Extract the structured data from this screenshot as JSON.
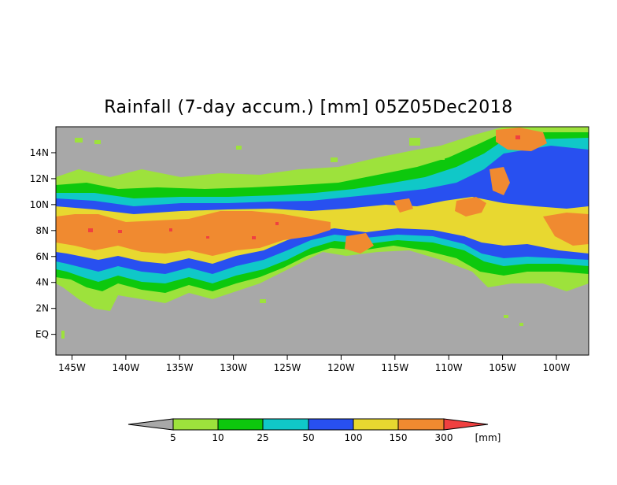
{
  "title": "Rainfall (7-day accum.) [mm] 05Z05Dec2018",
  "map": {
    "lon_range": [
      -146.5,
      -97
    ],
    "lat_range": [
      -1.6,
      16
    ],
    "x_ticks": [
      {
        "lon": -145,
        "label": "145W"
      },
      {
        "lon": -140,
        "label": "140W"
      },
      {
        "lon": -135,
        "label": "135W"
      },
      {
        "lon": -130,
        "label": "130W"
      },
      {
        "lon": -125,
        "label": "125W"
      },
      {
        "lon": -120,
        "label": "120W"
      },
      {
        "lon": -115,
        "label": "115W"
      },
      {
        "lon": -110,
        "label": "110W"
      },
      {
        "lon": -105,
        "label": "105W"
      },
      {
        "lon": -100,
        "label": "100W"
      }
    ],
    "y_ticks": [
      {
        "lat": 0,
        "label": "EQ"
      },
      {
        "lat": 2,
        "label": "2N"
      },
      {
        "lat": 4,
        "label": "4N"
      },
      {
        "lat": 6,
        "label": "6N"
      },
      {
        "lat": 8,
        "label": "8N"
      },
      {
        "lat": 10,
        "label": "10N"
      },
      {
        "lat": 12,
        "label": "12N"
      },
      {
        "lat": 14,
        "label": "14N"
      }
    ],
    "background_color": "#a8a8a8"
  },
  "legend": {
    "labels": [
      "5",
      "10",
      "25",
      "50",
      "100",
      "150",
      "300"
    ],
    "unit": "[mm]",
    "colors": [
      "#a8a8a8",
      "#9de23c",
      "#0dc80d",
      "#10c8c8",
      "#2850f0",
      "#e8d830",
      "#f08a30",
      "#f04040"
    ]
  }
}
